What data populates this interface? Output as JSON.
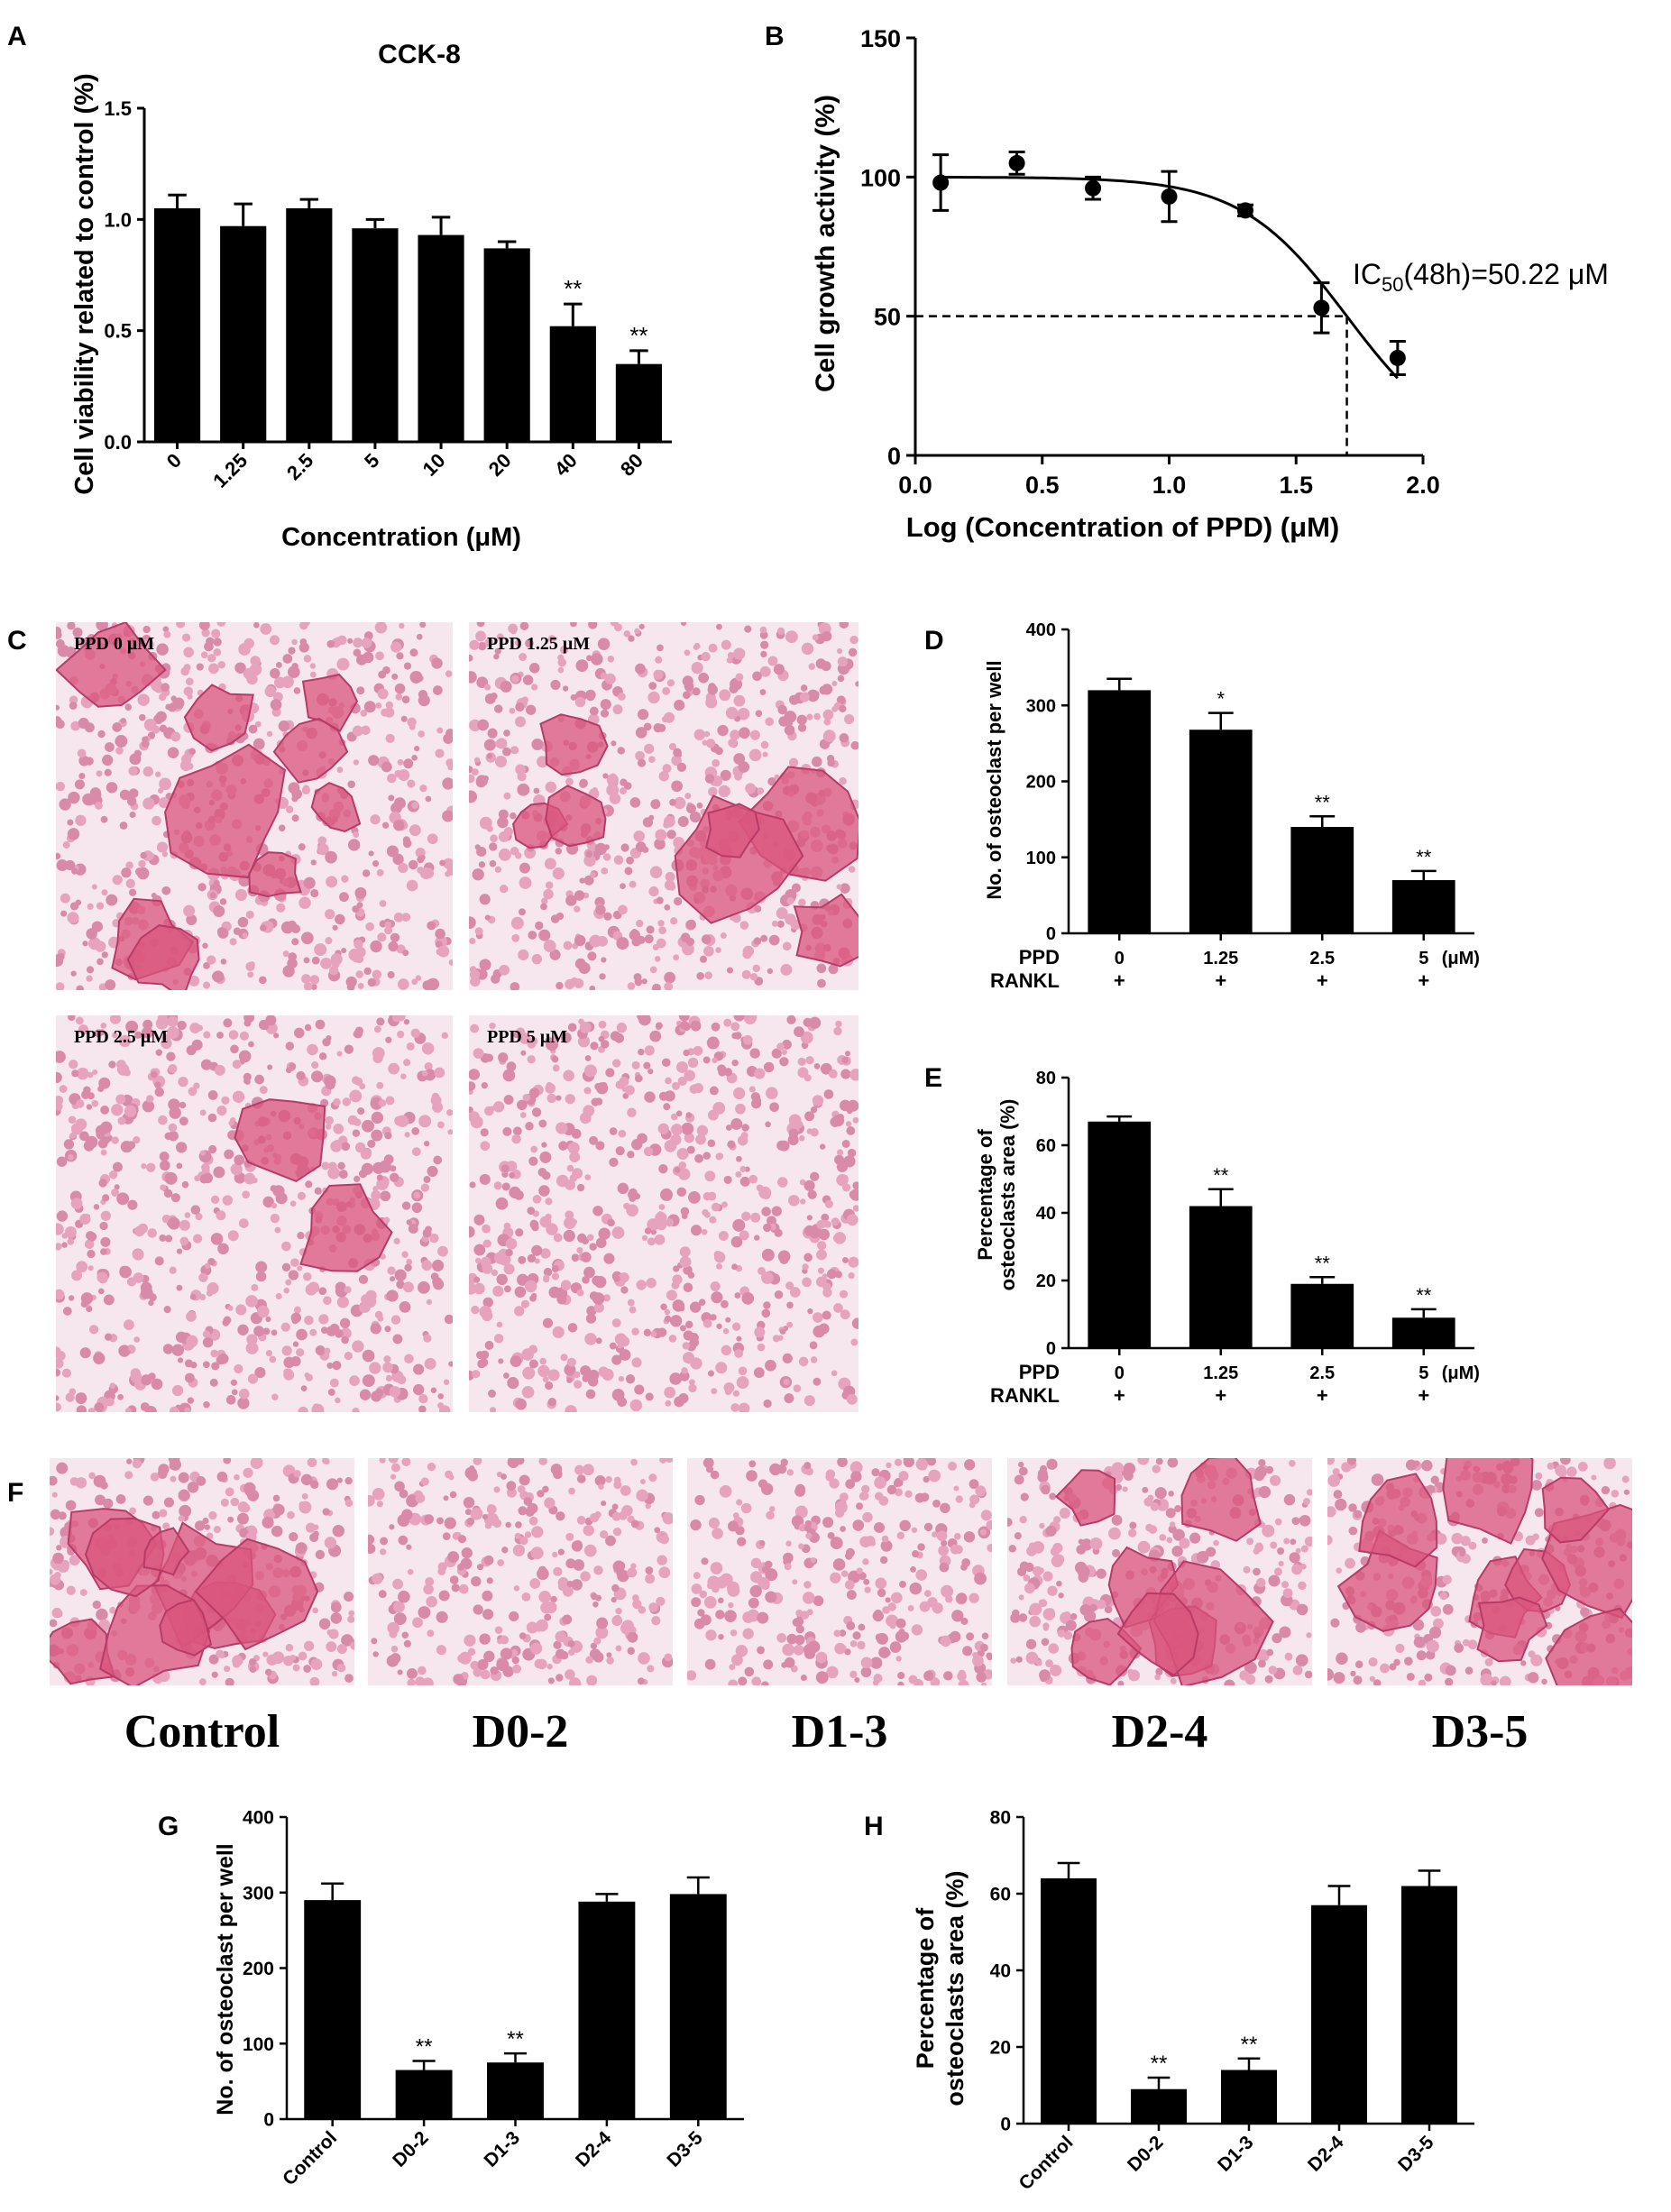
{
  "panels": {
    "A": "A",
    "B": "B",
    "C": "C",
    "D": "D",
    "E": "E",
    "F": "F",
    "G": "G",
    "H": "H"
  },
  "colors": {
    "bar": "#000000",
    "background": "#ffffff",
    "stain": "#d9557e",
    "stain_light": "#f3d9e3"
  },
  "micrographs_C": [
    {
      "label": "PPD  0 μM",
      "density": "high"
    },
    {
      "label": "PPD  1.25 μM",
      "density": "medium"
    },
    {
      "label": "PPD  2.5 μM",
      "density": "low"
    },
    {
      "label": "PPD  5 μM",
      "density": "none"
    }
  ],
  "micrographs_F": [
    {
      "label": "Control"
    },
    {
      "label": "D0-2"
    },
    {
      "label": "D1-3"
    },
    {
      "label": "D2-4"
    },
    {
      "label": "D3-5"
    }
  ],
  "chart_data": [
    {
      "id": "A",
      "type": "bar",
      "title": "CCK-8",
      "xlabel": "Concentration  (μM)",
      "ylabel": "Cell viability related to control (%)",
      "categories": [
        "0",
        "1.25",
        "2.5",
        "5",
        "10",
        "20",
        "40",
        "80"
      ],
      "values": [
        1.05,
        0.97,
        1.05,
        0.96,
        0.93,
        0.87,
        0.52,
        0.35
      ],
      "errors": [
        0.06,
        0.1,
        0.04,
        0.04,
        0.08,
        0.03,
        0.1,
        0.06
      ],
      "significance": [
        "",
        "",
        "",
        "",
        "",
        "",
        "**",
        "**"
      ],
      "ylim": [
        0,
        1.5
      ],
      "yticks": [
        "0.0",
        "0.5",
        "1.0",
        "1.5"
      ],
      "grid": false
    },
    {
      "id": "B",
      "type": "scatter",
      "xlabel": "Log (Concentration of PPD) (μM)",
      "ylabel": "Cell growth activity (%)",
      "x": [
        0.1,
        0.4,
        0.7,
        1.0,
        1.3,
        1.6,
        1.9
      ],
      "y": [
        98,
        105,
        96,
        93,
        88,
        53,
        35
      ],
      "errors": [
        10,
        4,
        4,
        9,
        2,
        9,
        6
      ],
      "fit": {
        "top": 100,
        "bottom": 0,
        "logIC50": 1.7,
        "hill": 1.3
      },
      "annotation": "IC50(48h)=50.22 μM",
      "reference": {
        "y": 50,
        "x": 1.7
      },
      "xlim": [
        0,
        2.0
      ],
      "ylim": [
        0,
        150
      ],
      "xticks": [
        "0.0",
        "0.5",
        "1.0",
        "1.5",
        "2.0"
      ],
      "yticks": [
        "0",
        "50",
        "100",
        "150"
      ],
      "grid": false
    },
    {
      "id": "D",
      "type": "bar",
      "ylabel": "No. of osteoclast per well",
      "categories": [
        "0",
        "1.25",
        "2.5",
        "5"
      ],
      "values": [
        320,
        268,
        140,
        70
      ],
      "errors": [
        15,
        22,
        14,
        12
      ],
      "significance": [
        "",
        "*",
        "**",
        "**"
      ],
      "ylim": [
        0,
        400
      ],
      "yticks": [
        "0",
        "100",
        "200",
        "300",
        "400"
      ],
      "row_labels": [
        "PPD",
        "RANKL"
      ],
      "rankl": [
        "+",
        "+",
        "+",
        "+"
      ],
      "unit": "(μM)",
      "grid": false
    },
    {
      "id": "E",
      "type": "bar",
      "ylabel": "Percentage of osteoclasts area  (%)",
      "categories": [
        "0",
        "1.25",
        "2.5",
        "5"
      ],
      "values": [
        67,
        42,
        19,
        9
      ],
      "errors": [
        1.5,
        5,
        2,
        2.5
      ],
      "significance": [
        "",
        "**",
        "**",
        "**"
      ],
      "ylim": [
        0,
        80
      ],
      "yticks": [
        "0",
        "20",
        "40",
        "60",
        "80"
      ],
      "row_labels": [
        "PPD",
        "RANKL"
      ],
      "rankl": [
        "+",
        "+",
        "+",
        "+"
      ],
      "unit": "(μM)",
      "grid": false
    },
    {
      "id": "G",
      "type": "bar",
      "ylabel": "No. of osteoclast per well",
      "categories": [
        "Control",
        "D0-2",
        "D1-3",
        "D2-4",
        "D3-5"
      ],
      "values": [
        290,
        65,
        75,
        288,
        298
      ],
      "errors": [
        22,
        12,
        12,
        10,
        22
      ],
      "significance": [
        "",
        "**",
        "**",
        "",
        ""
      ],
      "ylim": [
        0,
        400
      ],
      "yticks": [
        "0",
        "100",
        "200",
        "300",
        "400"
      ],
      "grid": false
    },
    {
      "id": "H",
      "type": "bar",
      "ylabel": "Percentage of osteoclasts area  (%)",
      "categories": [
        "Control",
        "D0-2",
        "D1-3",
        "D2-4",
        "D3-5"
      ],
      "values": [
        64,
        9,
        14,
        57,
        62
      ],
      "errors": [
        4,
        3,
        3,
        5,
        4
      ],
      "significance": [
        "",
        "**",
        "**",
        "",
        ""
      ],
      "ylim": [
        0,
        80
      ],
      "yticks": [
        "0",
        "20",
        "40",
        "60",
        "80"
      ],
      "grid": false
    }
  ]
}
